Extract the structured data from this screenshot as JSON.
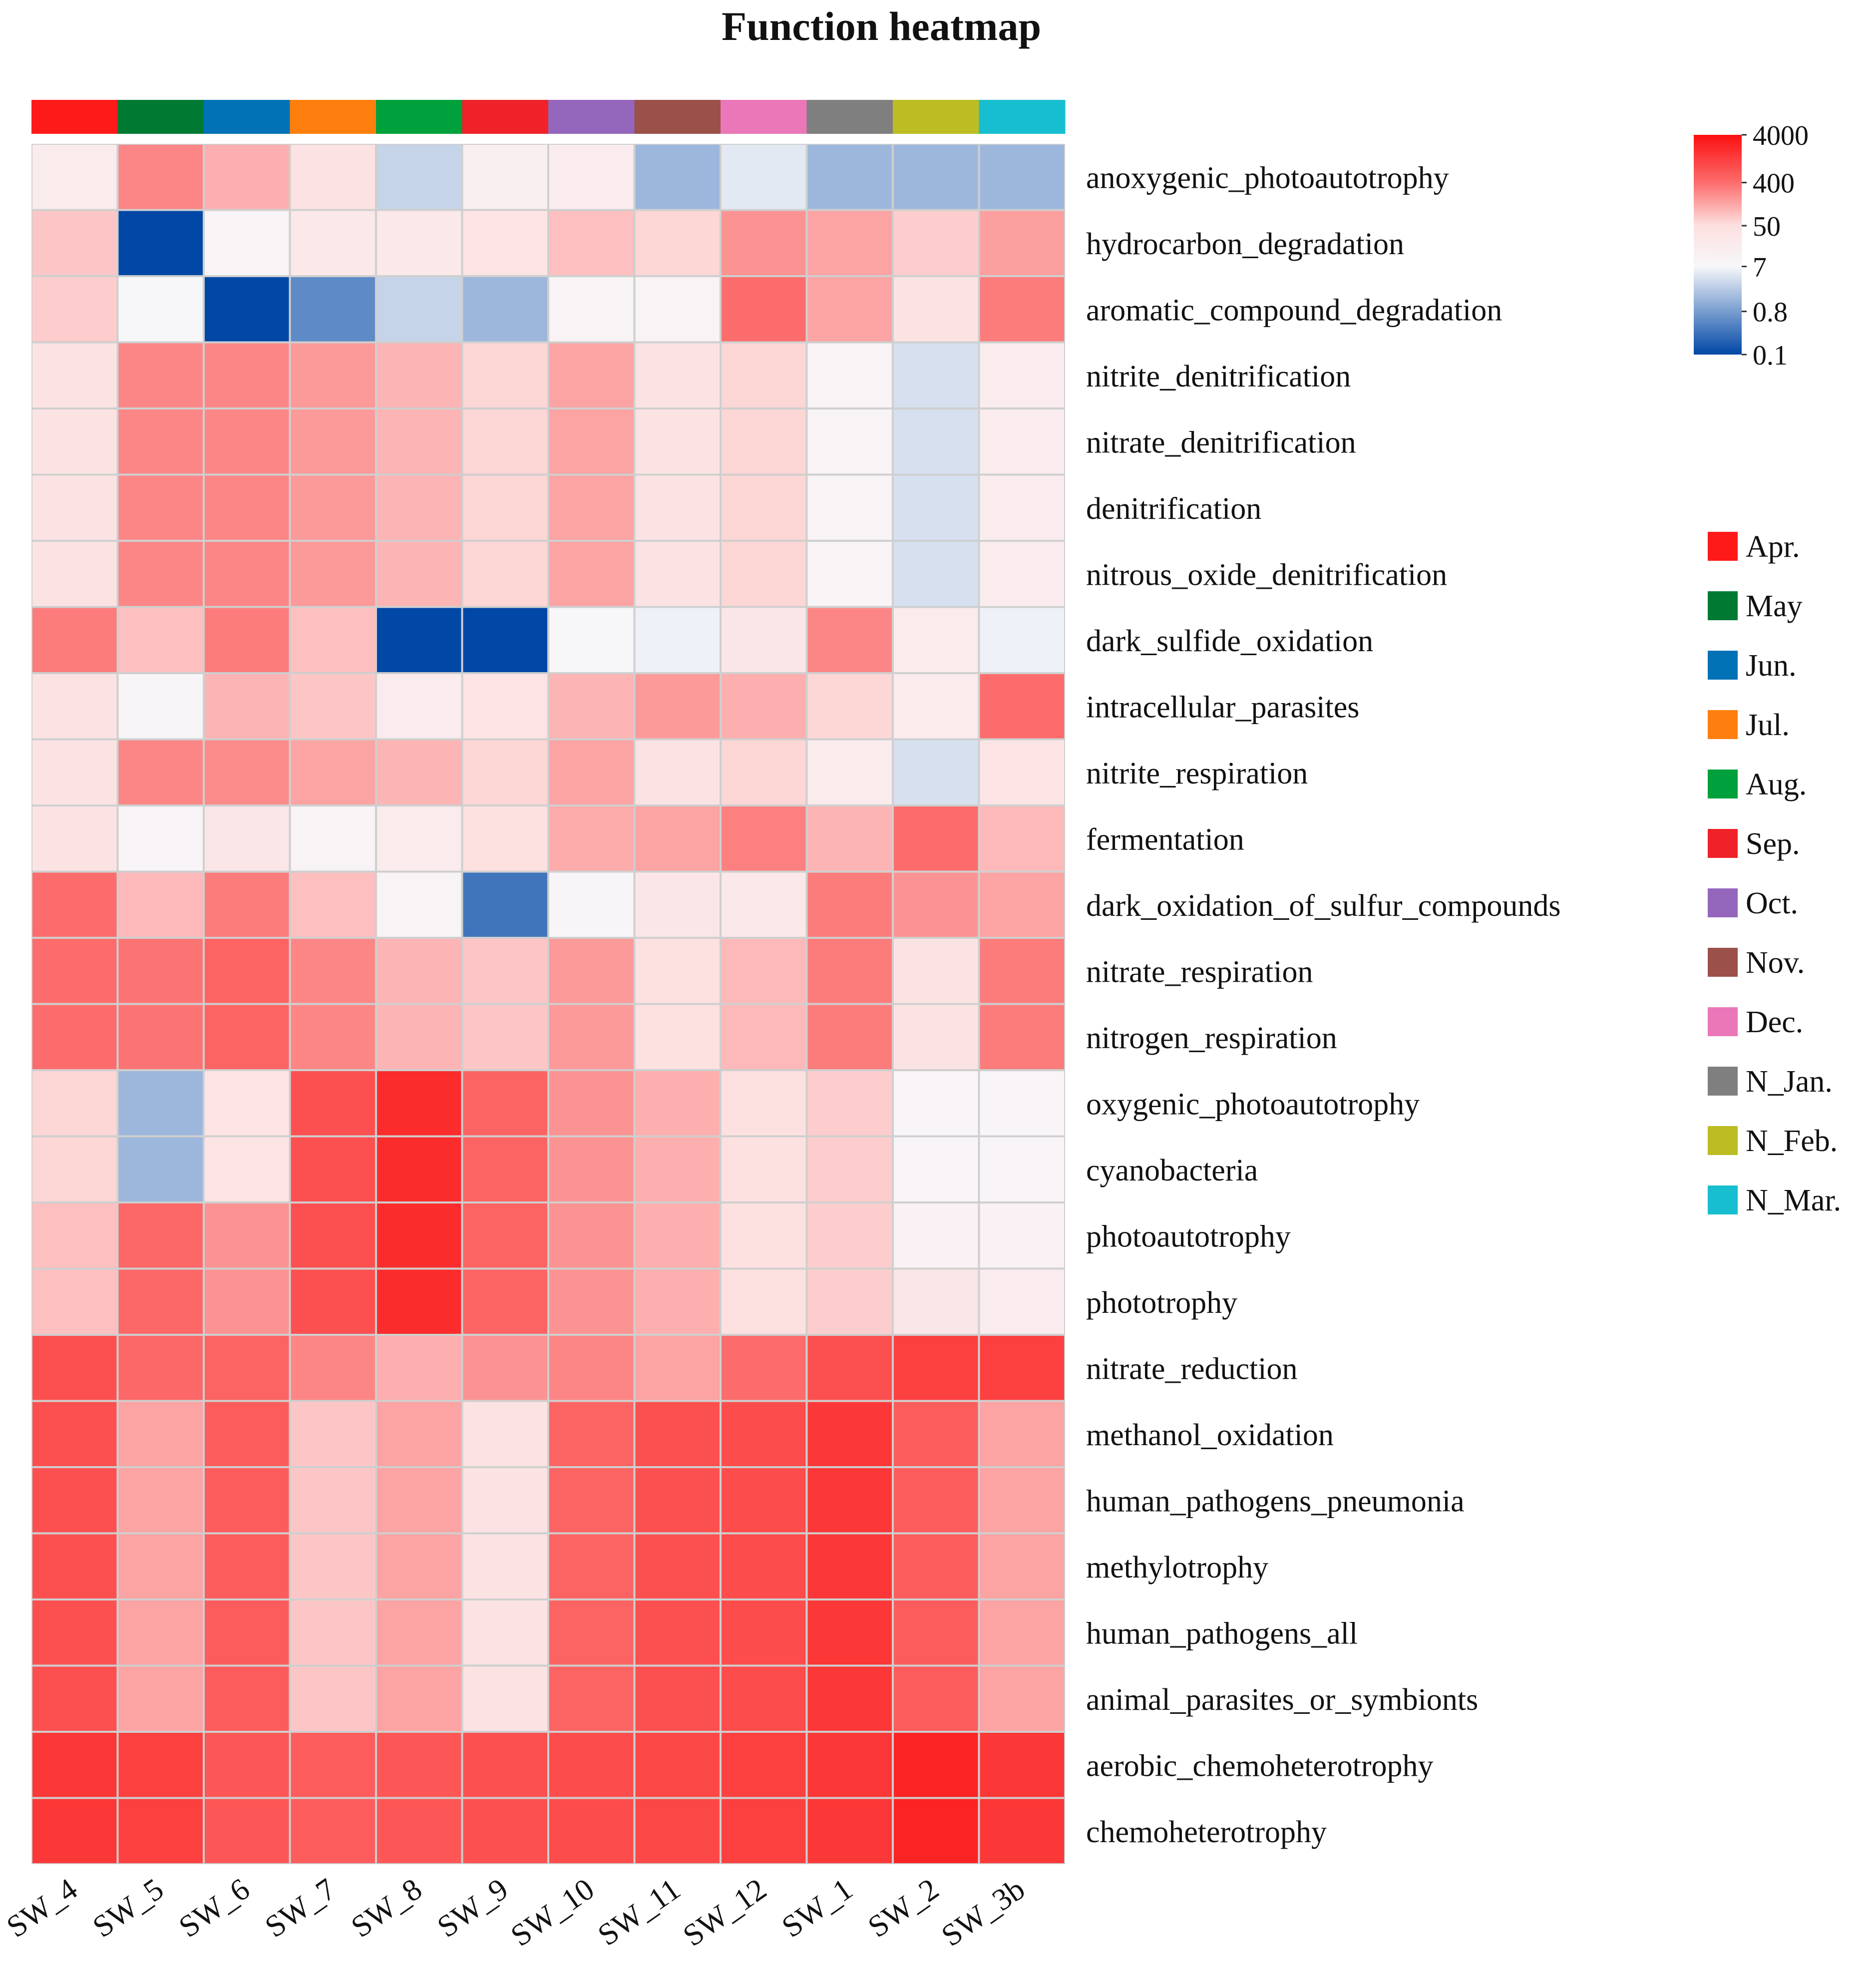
{
  "chart_data": {
    "type": "heatmap",
    "title": "Function heatmap",
    "columns": [
      "SW_4",
      "SW_5",
      "SW_6",
      "SW_7",
      "SW_8",
      "SW_9",
      "SW_10",
      "SW_11",
      "SW_12",
      "SW_1",
      "SW_2",
      "SW_3b"
    ],
    "column_groups": [
      "Apr.",
      "May",
      "Jun.",
      "Jul.",
      "Aug.",
      "Sep.",
      "Oct.",
      "Nov.",
      "Dec.",
      "N_Jan.",
      "N_Feb.",
      "N_Mar."
    ],
    "rows": [
      "anoxygenic_photoautotrophy",
      "hydrocarbon_degradation",
      "aromatic_compound_degradation",
      "nitrite_denitrification",
      "nitrate_denitrification",
      "denitrification",
      "nitrous_oxide_denitrification",
      "dark_sulfide_oxidation",
      "intracellular_parasites",
      "nitrite_respiration",
      "fermentation",
      "dark_oxidation_of_sulfur_compounds",
      "nitrate_respiration",
      "nitrogen_respiration",
      "oxygenic_photoautotrophy",
      "cyanobacteria",
      "photoautotrophy",
      "phototrophy",
      "nitrate_reduction",
      "methanol_oxidation",
      "human_pathogens_pneumonia",
      "methylotrophy",
      "human_pathogens_all",
      "animal_parasites_or_symbionts",
      "aerobic_chemoheterotrophy",
      "chemoheterotrophy"
    ],
    "values": [
      [
        20,
        250,
        120,
        40,
        3,
        15,
        18,
        1.5,
        5,
        1.5,
        1.5,
        1.5
      ],
      [
        80,
        0.1,
        10,
        25,
        25,
        35,
        90,
        60,
        200,
        150,
        70,
        160
      ],
      [
        70,
        7,
        0.1,
        0.5,
        3,
        1.5,
        10,
        10,
        400,
        150,
        40,
        300
      ],
      [
        40,
        250,
        250,
        180,
        110,
        60,
        150,
        40,
        60,
        10,
        4,
        18
      ],
      [
        40,
        250,
        250,
        180,
        110,
        60,
        150,
        40,
        60,
        10,
        4,
        18
      ],
      [
        40,
        250,
        250,
        180,
        110,
        60,
        150,
        40,
        60,
        10,
        4,
        18
      ],
      [
        40,
        250,
        250,
        180,
        110,
        60,
        150,
        40,
        60,
        10,
        4,
        18
      ],
      [
        300,
        90,
        300,
        90,
        0.1,
        0.1,
        7,
        6,
        30,
        250,
        20,
        6
      ],
      [
        40,
        8,
        110,
        80,
        18,
        35,
        110,
        180,
        120,
        60,
        20,
        400
      ],
      [
        40,
        250,
        230,
        150,
        110,
        60,
        150,
        40,
        60,
        20,
        4,
        35
      ],
      [
        40,
        9,
        30,
        10,
        20,
        50,
        130,
        150,
        280,
        110,
        400,
        100
      ],
      [
        400,
        100,
        300,
        90,
        10,
        0.3,
        8,
        30,
        25,
        300,
        200,
        150
      ],
      [
        400,
        350,
        500,
        250,
        110,
        80,
        180,
        50,
        100,
        300,
        40,
        300
      ],
      [
        400,
        350,
        500,
        250,
        110,
        80,
        180,
        50,
        100,
        300,
        40,
        300
      ],
      [
        60,
        1.5,
        35,
        800,
        2000,
        500,
        200,
        120,
        50,
        70,
        9,
        9
      ],
      [
        60,
        1.5,
        35,
        800,
        2000,
        500,
        200,
        120,
        50,
        70,
        9,
        9
      ],
      [
        90,
        450,
        200,
        800,
        2000,
        500,
        200,
        120,
        50,
        70,
        12,
        12
      ],
      [
        90,
        450,
        200,
        800,
        2000,
        500,
        200,
        120,
        50,
        70,
        30,
        18
      ],
      [
        800,
        450,
        500,
        250,
        120,
        200,
        250,
        150,
        400,
        800,
        1200,
        1200
      ],
      [
        800,
        150,
        600,
        80,
        150,
        40,
        500,
        800,
        900,
        1500,
        600,
        150
      ],
      [
        800,
        150,
        600,
        80,
        150,
        40,
        500,
        800,
        900,
        1500,
        600,
        150
      ],
      [
        800,
        150,
        600,
        80,
        150,
        40,
        500,
        800,
        900,
        1500,
        600,
        150
      ],
      [
        800,
        150,
        600,
        80,
        150,
        40,
        500,
        800,
        900,
        1500,
        600,
        150
      ],
      [
        800,
        150,
        600,
        80,
        150,
        40,
        500,
        800,
        900,
        1500,
        600,
        150
      ],
      [
        1500,
        1200,
        700,
        600,
        700,
        800,
        900,
        1000,
        1200,
        1500,
        2500,
        1500
      ],
      [
        1500,
        1200,
        700,
        600,
        700,
        800,
        900,
        1000,
        1200,
        1500,
        2500,
        1500
      ]
    ],
    "color_scale": {
      "type": "log",
      "ticks": [
        "4000",
        "400",
        "50",
        "7",
        "0.8",
        "0.1"
      ],
      "tick_values": [
        4000,
        400,
        50,
        7,
        0.8,
        0.1
      ],
      "min": 0.1,
      "max": 4000,
      "stops": [
        {
          "value": 0.1,
          "color": "#0047a6"
        },
        {
          "value": 7,
          "color": "#f7f7fa"
        },
        {
          "value": 50,
          "color": "#fde0e0"
        },
        {
          "value": 400,
          "color": "#fc6c6c"
        },
        {
          "value": 4000,
          "color": "#fb1010"
        }
      ]
    },
    "legend": {
      "title": "",
      "placement": "right",
      "items": [
        {
          "label": "Apr.",
          "color": "#ff1a1a"
        },
        {
          "label": "May",
          "color": "#007a33"
        },
        {
          "label": "Jun.",
          "color": "#0072b5"
        },
        {
          "label": "Jul.",
          "color": "#ff7f0e"
        },
        {
          "label": "Aug.",
          "color": "#00a03c"
        },
        {
          "label": "Sep.",
          "color": "#ee2228"
        },
        {
          "label": "Oct.",
          "color": "#9467bd"
        },
        {
          "label": "Nov.",
          "color": "#9b5149"
        },
        {
          "label": "Dec.",
          "color": "#ea77b8"
        },
        {
          "label": "N_Jan.",
          "color": "#7f7f7f"
        },
        {
          "label": "N_Feb.",
          "color": "#bcbd22"
        },
        {
          "label": "N_Mar.",
          "color": "#17becf"
        }
      ]
    }
  }
}
